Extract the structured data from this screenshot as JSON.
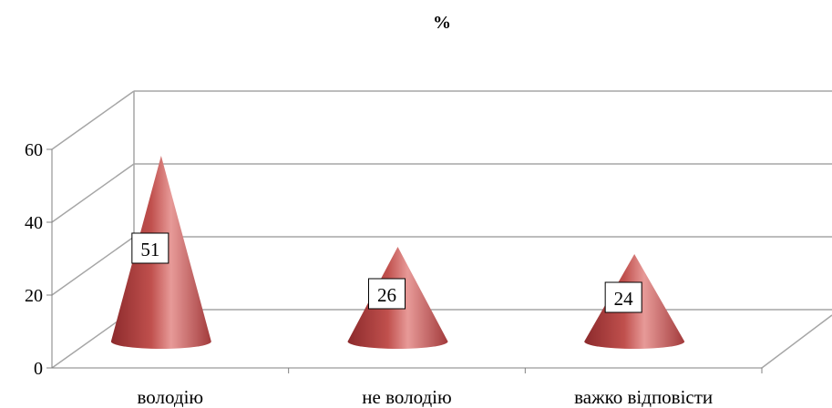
{
  "chart_data": {
    "type": "bar",
    "shape": "cone",
    "title": "%",
    "categories": [
      "володію",
      "не володію",
      "важко відповісти"
    ],
    "values": [
      51,
      26,
      24
    ],
    "data_labels": [
      "51",
      "26",
      "24"
    ],
    "ylim": [
      0,
      60
    ],
    "yticks": [
      0,
      20,
      40,
      60
    ],
    "ytick_labels": [
      "0",
      "20",
      "40",
      "60"
    ],
    "grid": true,
    "legend": "none",
    "colors": {
      "cone_dark": "#8c2a2c",
      "cone_mid": "#c0504d",
      "cone_light": "#e79a98",
      "grid": "#a6a6a6",
      "axis": "#808080",
      "text": "#000000"
    }
  }
}
